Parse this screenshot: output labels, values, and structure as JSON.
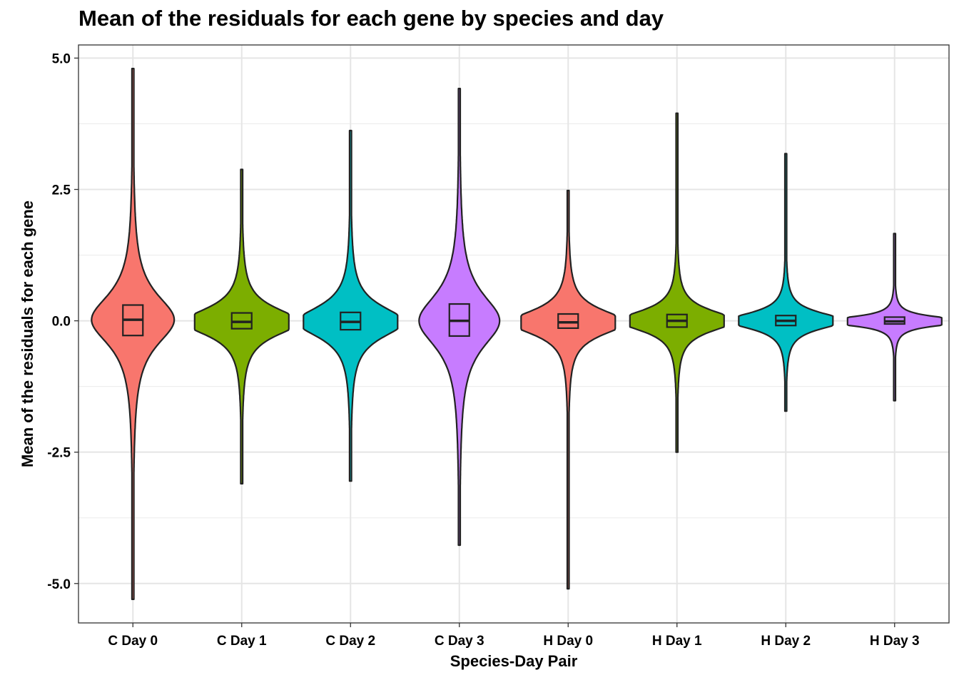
{
  "chart_data": {
    "type": "violin",
    "title": "Mean of the residuals for each gene by species and day",
    "xlabel": "Species-Day Pair",
    "ylabel": "Mean of the residuals for each gene",
    "ylim": [
      -5.75,
      5.25
    ],
    "yticks": [
      "5.0",
      "2.5",
      "0.0",
      "-2.5",
      "-5.0"
    ],
    "ytick_values": [
      5.0,
      2.5,
      0.0,
      -2.5,
      -5.0
    ],
    "grid": true,
    "categories": [
      "C Day 0",
      "C Day 1",
      "C Day 2",
      "C Day 3",
      "H Day 0",
      "H Day 1",
      "H Day 2",
      "H Day 3"
    ],
    "fill_colors": [
      "#F8766D",
      "#7CAE00",
      "#00BFC4",
      "#C77CFF",
      "#F8766D",
      "#7CAE00",
      "#00BFC4",
      "#C77CFF"
    ],
    "series": [
      {
        "category": "C Day 0",
        "min": -5.3,
        "q1": -0.28,
        "median": 0.02,
        "q3": 0.3,
        "max": 4.8,
        "spread": 0.9
      },
      {
        "category": "C Day 1",
        "min": -3.1,
        "q1": -0.15,
        "median": -0.02,
        "q3": 0.15,
        "max": 2.88,
        "spread": 0.5
      },
      {
        "category": "C Day 2",
        "min": -3.05,
        "q1": -0.17,
        "median": -0.02,
        "q3": 0.16,
        "max": 3.62,
        "spread": 0.56
      },
      {
        "category": "C Day 3",
        "min": -4.27,
        "q1": -0.29,
        "median": 0.0,
        "q3": 0.32,
        "max": 4.42,
        "spread": 0.95
      },
      {
        "category": "H Day 0",
        "min": -5.1,
        "q1": -0.14,
        "median": -0.03,
        "q3": 0.13,
        "max": 2.48,
        "spread": 0.45
      },
      {
        "category": "H Day 1",
        "min": -2.5,
        "q1": -0.12,
        "median": 0.0,
        "q3": 0.12,
        "max": 3.95,
        "spread": 0.38
      },
      {
        "category": "H Day 2",
        "min": -1.72,
        "q1": -0.09,
        "median": 0.0,
        "q3": 0.1,
        "max": 3.18,
        "spread": 0.3
      },
      {
        "category": "H Day 3",
        "min": -1.52,
        "q1": -0.06,
        "median": -0.01,
        "q3": 0.07,
        "max": 1.66,
        "spread": 0.16
      }
    ]
  }
}
